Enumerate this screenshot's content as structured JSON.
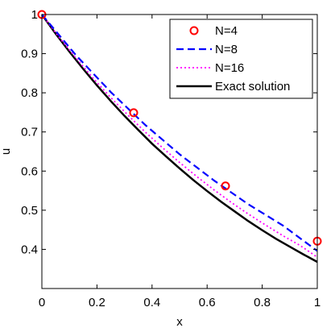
{
  "chart_data": {
    "type": "line",
    "xlabel": "x",
    "ylabel": "u",
    "xlim": [
      0,
      1
    ],
    "ylim": [
      0.3,
      1.0
    ],
    "x_ticks": [
      0,
      0.2,
      0.4,
      0.6,
      0.8,
      1
    ],
    "y_ticks": [
      0.4,
      0.5,
      0.6,
      0.7,
      0.8,
      0.9,
      1
    ],
    "x_tick_labels": [
      "0",
      "0.2",
      "0.4",
      "0.6",
      "0.8",
      "1"
    ],
    "y_tick_labels": [
      "0.4",
      "0.5",
      "0.6",
      "0.7",
      "0.8",
      "0.9",
      "1"
    ],
    "grid": false,
    "legend_position": "top-right",
    "series": [
      {
        "name": "N=4",
        "style": "markers-circle",
        "color": "#ff0000",
        "x": [
          0,
          0.3333,
          0.6667,
          1.0
        ],
        "y": [
          1.0,
          0.749,
          0.562,
          0.421
        ]
      },
      {
        "name": "N=8",
        "style": "dashed",
        "color": "#0000ff",
        "x": [
          0,
          0.125,
          0.25,
          0.375,
          0.5,
          0.625,
          0.75,
          0.875,
          1.0
        ],
        "y": [
          1.0,
          0.895,
          0.802,
          0.718,
          0.643,
          0.576,
          0.515,
          0.461,
          0.396
        ]
      },
      {
        "name": "N=16",
        "style": "dotted",
        "color": "#ff00ff",
        "x": [
          0,
          0.0625,
          0.125,
          0.1875,
          0.25,
          0.3125,
          0.375,
          0.4375,
          0.5,
          0.5625,
          0.625,
          0.6875,
          0.75,
          0.8125,
          0.875,
          0.9375,
          1.0
        ],
        "y": [
          1.0,
          0.942,
          0.888,
          0.836,
          0.788,
          0.743,
          0.7,
          0.66,
          0.622,
          0.586,
          0.552,
          0.52,
          0.49,
          0.462,
          0.435,
          0.41,
          0.38
        ]
      },
      {
        "name": "Exact solution",
        "style": "solid",
        "color": "#000000",
        "x": [
          0,
          0.05,
          0.1,
          0.15,
          0.2,
          0.25,
          0.3,
          0.35,
          0.4,
          0.45,
          0.5,
          0.55,
          0.6,
          0.65,
          0.7,
          0.75,
          0.8,
          0.85,
          0.9,
          0.95,
          1.0
        ],
        "y": [
          1.0,
          0.951,
          0.905,
          0.861,
          0.819,
          0.779,
          0.741,
          0.705,
          0.67,
          0.638,
          0.607,
          0.577,
          0.549,
          0.522,
          0.497,
          0.472,
          0.449,
          0.427,
          0.407,
          0.387,
          0.368
        ]
      }
    ]
  }
}
